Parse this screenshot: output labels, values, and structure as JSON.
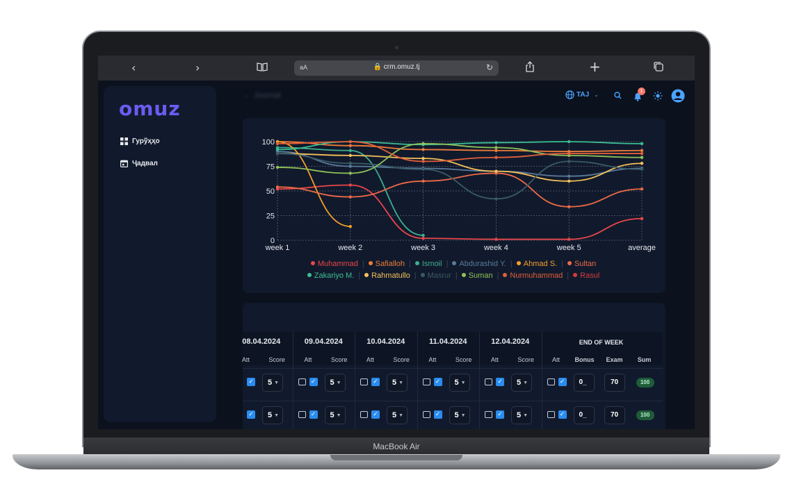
{
  "device_label": "MacBook Air",
  "browser": {
    "url": "crm.omuz.tj",
    "text_size_label": "aA"
  },
  "app": {
    "logo": "omuz",
    "page_title": "Journal",
    "language": "TAJ",
    "notification_count": "1",
    "nav": [
      {
        "label": "Гурўҳҳо"
      },
      {
        "label": "Ҷадвал"
      }
    ]
  },
  "chart_data": {
    "type": "line",
    "categories": [
      "week 1",
      "week 2",
      "week 3",
      "week 4",
      "week 5",
      "average"
    ],
    "ylim": [
      0,
      100
    ],
    "yticks": [
      "0",
      "25",
      "50",
      "75",
      "100"
    ],
    "series": [
      {
        "name": "Muhammad",
        "color": "#e8464a",
        "values": [
          52,
          56,
          2,
          1,
          1,
          22
        ]
      },
      {
        "name": "Safialloh",
        "color": "#f07c3a",
        "values": [
          100,
          96,
          92,
          91,
          90,
          91
        ]
      },
      {
        "name": "Ismoil",
        "color": "#3fae8f",
        "values": [
          94,
          91,
          5,
          null,
          null,
          null
        ]
      },
      {
        "name": "Abdurashid Y.",
        "color": "#5a7a9c",
        "values": [
          90,
          75,
          73,
          70,
          65,
          73
        ]
      },
      {
        "name": "Ahmad S.",
        "color": "#f5a02a",
        "values": [
          100,
          14,
          null,
          null,
          null,
          null
        ]
      },
      {
        "name": "Sultan",
        "color": "#ee6a48",
        "values": [
          54,
          44,
          60,
          68,
          34,
          52
        ]
      },
      {
        "name": "Zakariyo M.",
        "color": "#3bbf93",
        "values": [
          92,
          102,
          97,
          99,
          102,
          98
        ]
      },
      {
        "name": "Rahmatullo",
        "color": "#f4c15a",
        "values": [
          88,
          86,
          83,
          70,
          60,
          78
        ]
      },
      {
        "name": "Masrur",
        "color": "#3a5a66",
        "values": [
          88,
          78,
          72,
          42,
          80,
          72
        ]
      },
      {
        "name": "Suman",
        "color": "#8fc25a",
        "values": [
          74,
          68,
          98,
          94,
          86,
          84
        ]
      },
      {
        "name": "Nurmuhammad",
        "color": "#e35f3a",
        "values": [
          98,
          100,
          80,
          84,
          88,
          88
        ]
      },
      {
        "name": "Rasul",
        "color": "#d63a3a",
        "values": [
          null,
          null,
          null,
          null,
          null,
          null
        ]
      }
    ]
  },
  "table": {
    "dates": [
      "08.04.2024",
      "09.04.2024",
      "10.04.2024",
      "11.04.2024",
      "12.04.2024"
    ],
    "end_of_week": "END OF WEEK",
    "sub_att": "Att",
    "sub_score": "Score",
    "sub_bonus": "Bonus",
    "sub_exam": "Exam",
    "sub_sum": "Sum",
    "rows": [
      {
        "scores": [
          "5",
          "5",
          "5",
          "5",
          "5"
        ],
        "bonus": "0_",
        "exam": "70",
        "sum": "100"
      },
      {
        "scores": [
          "5",
          "5",
          "5",
          "5",
          "5"
        ],
        "bonus": "0_",
        "exam": "70",
        "sum": "100"
      }
    ]
  }
}
